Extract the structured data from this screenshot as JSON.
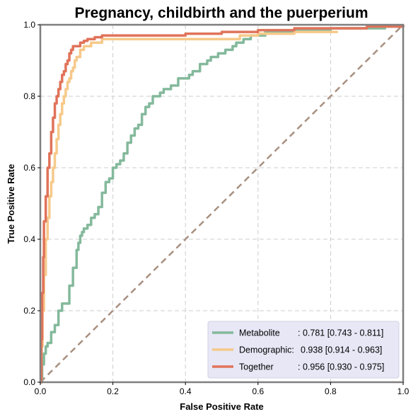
{
  "chart_data": {
    "type": "line",
    "title": "Pregnancy, childbirth and the puerperium",
    "xlabel": "False Positive Rate",
    "ylabel": "True Positive Rate",
    "xlim": [
      0,
      1
    ],
    "ylim": [
      0,
      1
    ],
    "xticks": [
      "0.0",
      "0.2",
      "0.4",
      "0.6",
      "0.8",
      "1.0"
    ],
    "yticks": [
      "0.0",
      "0.2",
      "0.4",
      "0.6",
      "0.8",
      "1.0"
    ],
    "grid": true,
    "legend_position": "bottom-right",
    "series": [
      {
        "name": "Metabolite",
        "score": ": 0.781 [0.743 - 0.811]",
        "color": "#84b99c",
        "x": [
          0,
          0.005,
          0.01,
          0.015,
          0.02,
          0.03,
          0.04,
          0.05,
          0.06,
          0.07,
          0.08,
          0.09,
          0.1,
          0.105,
          0.11,
          0.115,
          0.12,
          0.13,
          0.14,
          0.15,
          0.16,
          0.17,
          0.18,
          0.19,
          0.2,
          0.21,
          0.22,
          0.23,
          0.24,
          0.25,
          0.26,
          0.27,
          0.28,
          0.29,
          0.3,
          0.31,
          0.32,
          0.33,
          0.34,
          0.35,
          0.36,
          0.37,
          0.38,
          0.4,
          0.41,
          0.42,
          0.43,
          0.44,
          0.45,
          0.46,
          0.47,
          0.48,
          0.49,
          0.5,
          0.51,
          0.52,
          0.53,
          0.54,
          0.55,
          0.56,
          0.58,
          0.6,
          0.62,
          0.65,
          0.68,
          0.7,
          0.75,
          0.8,
          0.85,
          0.9,
          0.95,
          1.0
        ],
        "y": [
          0,
          0.05,
          0.08,
          0.1,
          0.11,
          0.14,
          0.16,
          0.2,
          0.22,
          0.22,
          0.27,
          0.32,
          0.37,
          0.39,
          0.41,
          0.42,
          0.43,
          0.44,
          0.46,
          0.47,
          0.49,
          0.53,
          0.56,
          0.57,
          0.6,
          0.61,
          0.62,
          0.64,
          0.67,
          0.69,
          0.71,
          0.72,
          0.75,
          0.77,
          0.78,
          0.8,
          0.8,
          0.81,
          0.82,
          0.82,
          0.83,
          0.83,
          0.85,
          0.85,
          0.86,
          0.87,
          0.87,
          0.89,
          0.89,
          0.9,
          0.91,
          0.91,
          0.92,
          0.92,
          0.93,
          0.93,
          0.94,
          0.95,
          0.95,
          0.96,
          0.97,
          0.97,
          0.98,
          0.98,
          0.98,
          0.985,
          0.985,
          0.99,
          0.99,
          0.99,
          0.995,
          1.0
        ]
      },
      {
        "name": "Demographic:",
        "score": "0.938 [0.914 - 0.963]",
        "color": "#f6c98a",
        "x": [
          0,
          0.003,
          0.006,
          0.01,
          0.015,
          0.02,
          0.025,
          0.03,
          0.035,
          0.04,
          0.045,
          0.05,
          0.055,
          0.06,
          0.065,
          0.07,
          0.075,
          0.08,
          0.085,
          0.09,
          0.095,
          0.1,
          0.11,
          0.12,
          0.13,
          0.14,
          0.15,
          0.17,
          0.2,
          0.3,
          0.4,
          0.5,
          0.55,
          0.6,
          0.65,
          0.7,
          0.75,
          0.8,
          0.82
        ],
        "y": [
          0,
          0.1,
          0.2,
          0.3,
          0.4,
          0.46,
          0.52,
          0.56,
          0.6,
          0.64,
          0.68,
          0.72,
          0.75,
          0.78,
          0.8,
          0.82,
          0.84,
          0.85,
          0.87,
          0.88,
          0.9,
          0.91,
          0.93,
          0.94,
          0.94,
          0.95,
          0.95,
          0.96,
          0.96,
          0.96,
          0.96,
          0.96,
          0.97,
          0.975,
          0.975,
          0.98,
          0.98,
          0.98,
          0.98
        ]
      },
      {
        "name": "Together",
        "score": ": 0.956 [0.930 - 0.975]",
        "color": "#e0735a",
        "x": [
          0,
          0.003,
          0.005,
          0.008,
          0.01,
          0.015,
          0.02,
          0.025,
          0.03,
          0.035,
          0.04,
          0.045,
          0.05,
          0.055,
          0.06,
          0.065,
          0.07,
          0.075,
          0.08,
          0.085,
          0.09,
          0.1,
          0.11,
          0.12,
          0.13,
          0.15,
          0.17,
          0.2,
          0.3,
          0.4,
          0.5,
          0.6,
          0.7,
          0.8,
          0.9,
          1.0
        ],
        "y": [
          0,
          0.12,
          0.25,
          0.35,
          0.45,
          0.52,
          0.6,
          0.64,
          0.7,
          0.74,
          0.78,
          0.8,
          0.82,
          0.84,
          0.86,
          0.87,
          0.89,
          0.9,
          0.92,
          0.93,
          0.94,
          0.94,
          0.95,
          0.955,
          0.96,
          0.965,
          0.97,
          0.97,
          0.97,
          0.975,
          0.98,
          0.985,
          0.99,
          0.99,
          0.995,
          1.0
        ]
      },
      {
        "name": "",
        "role": "chance-diagonal",
        "color": "#a89080",
        "dashed": true,
        "x": [
          0,
          1
        ],
        "y": [
          0,
          1
        ]
      }
    ]
  }
}
